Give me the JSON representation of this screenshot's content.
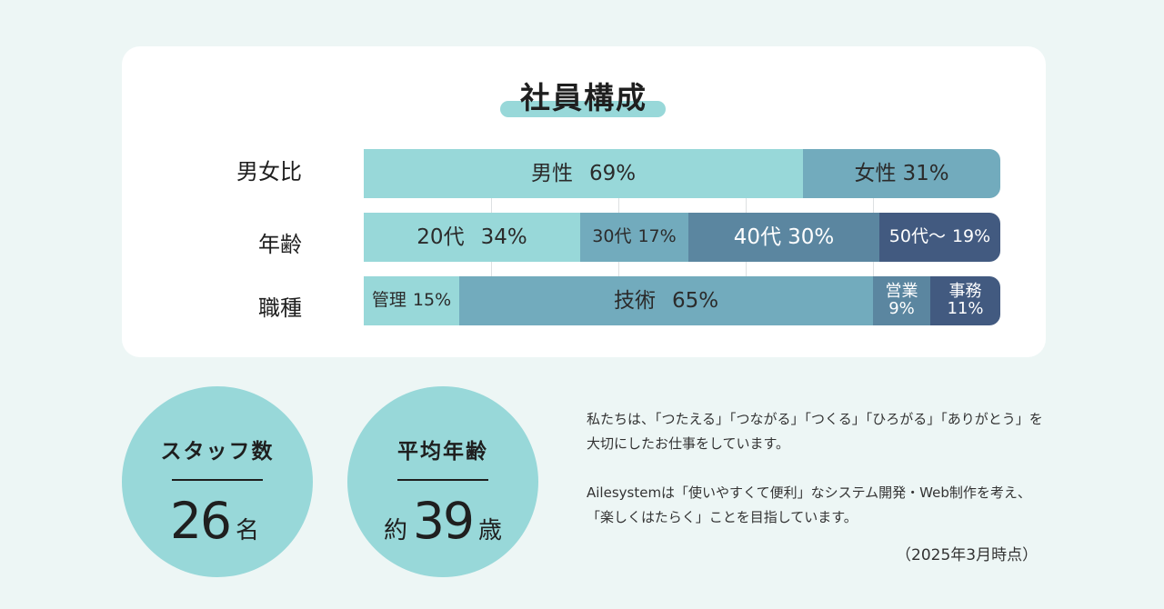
{
  "chart_data": {
    "type": "bar",
    "title": "社員構成",
    "stacked": true,
    "orientation": "horizontal",
    "rows": [
      {
        "label": "男女比",
        "segments": [
          {
            "label": "男性",
            "pct_text": "69%",
            "value": 69,
            "color": "#98d8d9",
            "text_color": "#2b2b2b",
            "layout": "gap"
          },
          {
            "label": "女性",
            "pct_text": "31%",
            "value": 31,
            "color": "#72abbd",
            "text_color": "#2b2b2b",
            "layout": "inline"
          }
        ]
      },
      {
        "label": "年齢",
        "segments": [
          {
            "label": "20代",
            "pct_text": "34%",
            "value": 34,
            "color": "#98d8d9",
            "text_color": "#2b2b2b",
            "layout": "gap"
          },
          {
            "label": "30代",
            "pct_text": "17%",
            "value": 17,
            "color": "#72abbd",
            "text_color": "#2b2b2b",
            "layout": "inline",
            "small": true
          },
          {
            "label": "40代",
            "pct_text": "30%",
            "value": 30,
            "color": "#5b86a0",
            "text_color": "#ffffff",
            "layout": "inline"
          },
          {
            "label": "50代～",
            "pct_text": "19%",
            "value": 19,
            "color": "#425a80",
            "text_color": "#ffffff",
            "layout": "inline",
            "small": true
          }
        ]
      },
      {
        "label": "職種",
        "segments": [
          {
            "label": "管理",
            "pct_text": "15%",
            "value": 15,
            "color": "#98d8d9",
            "text_color": "#2b2b2b",
            "layout": "inline",
            "small": true
          },
          {
            "label": "技術",
            "pct_text": "65%",
            "value": 65,
            "color": "#72abbd",
            "text_color": "#2b2b2b",
            "layout": "gap"
          },
          {
            "label": "営業",
            "pct_text": "9%",
            "value": 9,
            "color": "#5b86a0",
            "text_color": "#ffffff",
            "layout": "stack"
          },
          {
            "label": "事務",
            "pct_text": "11%",
            "value": 11,
            "color": "#425a80",
            "text_color": "#ffffff",
            "layout": "stack"
          }
        ]
      }
    ],
    "xlim": [
      0,
      100
    ],
    "grid": true
  },
  "stats": [
    {
      "label": "スタッフ数",
      "prefix": "",
      "value": "26",
      "unit": "名"
    },
    {
      "label": "平均年齢",
      "prefix": "約",
      "value": "39",
      "unit": "歳"
    }
  ],
  "description": [
    "私たちは、「つたえる」「つながる」「つくる」「ひろがる」「ありがとう」を大切にしたお仕事をしています。",
    "Ailesystemは「使いやすくて便利」なシステム開発・Web制作を考え、「楽しくはたらく」ことを目指しています。"
  ],
  "note": "（2025年3月時点）",
  "colors": {
    "background": "#edf6f5",
    "card": "#ffffff",
    "accent": "#98d8d9"
  }
}
